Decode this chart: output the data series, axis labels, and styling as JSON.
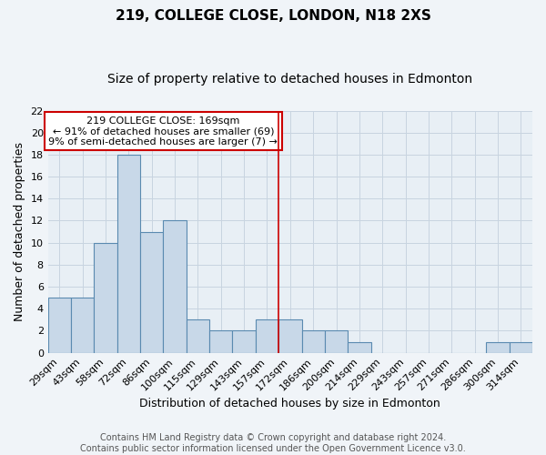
{
  "title": "219, COLLEGE CLOSE, LONDON, N18 2XS",
  "subtitle": "Size of property relative to detached houses in Edmonton",
  "xlabel": "Distribution of detached houses by size in Edmonton",
  "ylabel": "Number of detached properties",
  "categories": [
    "29sqm",
    "43sqm",
    "58sqm",
    "72sqm",
    "86sqm",
    "100sqm",
    "115sqm",
    "129sqm",
    "143sqm",
    "157sqm",
    "172sqm",
    "186sqm",
    "200sqm",
    "214sqm",
    "229sqm",
    "243sqm",
    "257sqm",
    "271sqm",
    "286sqm",
    "300sqm",
    "314sqm"
  ],
  "values": [
    5,
    5,
    10,
    18,
    11,
    12,
    3,
    2,
    2,
    3,
    3,
    2,
    2,
    1,
    0,
    0,
    0,
    0,
    0,
    1,
    1
  ],
  "bar_color": "#c8d8e8",
  "bar_edge_color": "#5a8ab0",
  "vline_color": "#cc0000",
  "annotation_text": "219 COLLEGE CLOSE: 169sqm\n← 91% of detached houses are smaller (69)\n9% of semi-detached houses are larger (7) →",
  "annotation_box_color": "#ffffff",
  "annotation_box_edge_color": "#cc0000",
  "ylim": [
    0,
    22
  ],
  "yticks": [
    0,
    2,
    4,
    6,
    8,
    10,
    12,
    14,
    16,
    18,
    20,
    22
  ],
  "grid_color": "#c8d4e0",
  "background_color": "#e8eff5",
  "fig_background_color": "#f0f4f8",
  "footer_text": "Contains HM Land Registry data © Crown copyright and database right 2024.\nContains public sector information licensed under the Open Government Licence v3.0.",
  "title_fontsize": 11,
  "subtitle_fontsize": 10,
  "xlabel_fontsize": 9,
  "ylabel_fontsize": 9,
  "tick_fontsize": 8,
  "annotation_fontsize": 8,
  "footer_fontsize": 7
}
